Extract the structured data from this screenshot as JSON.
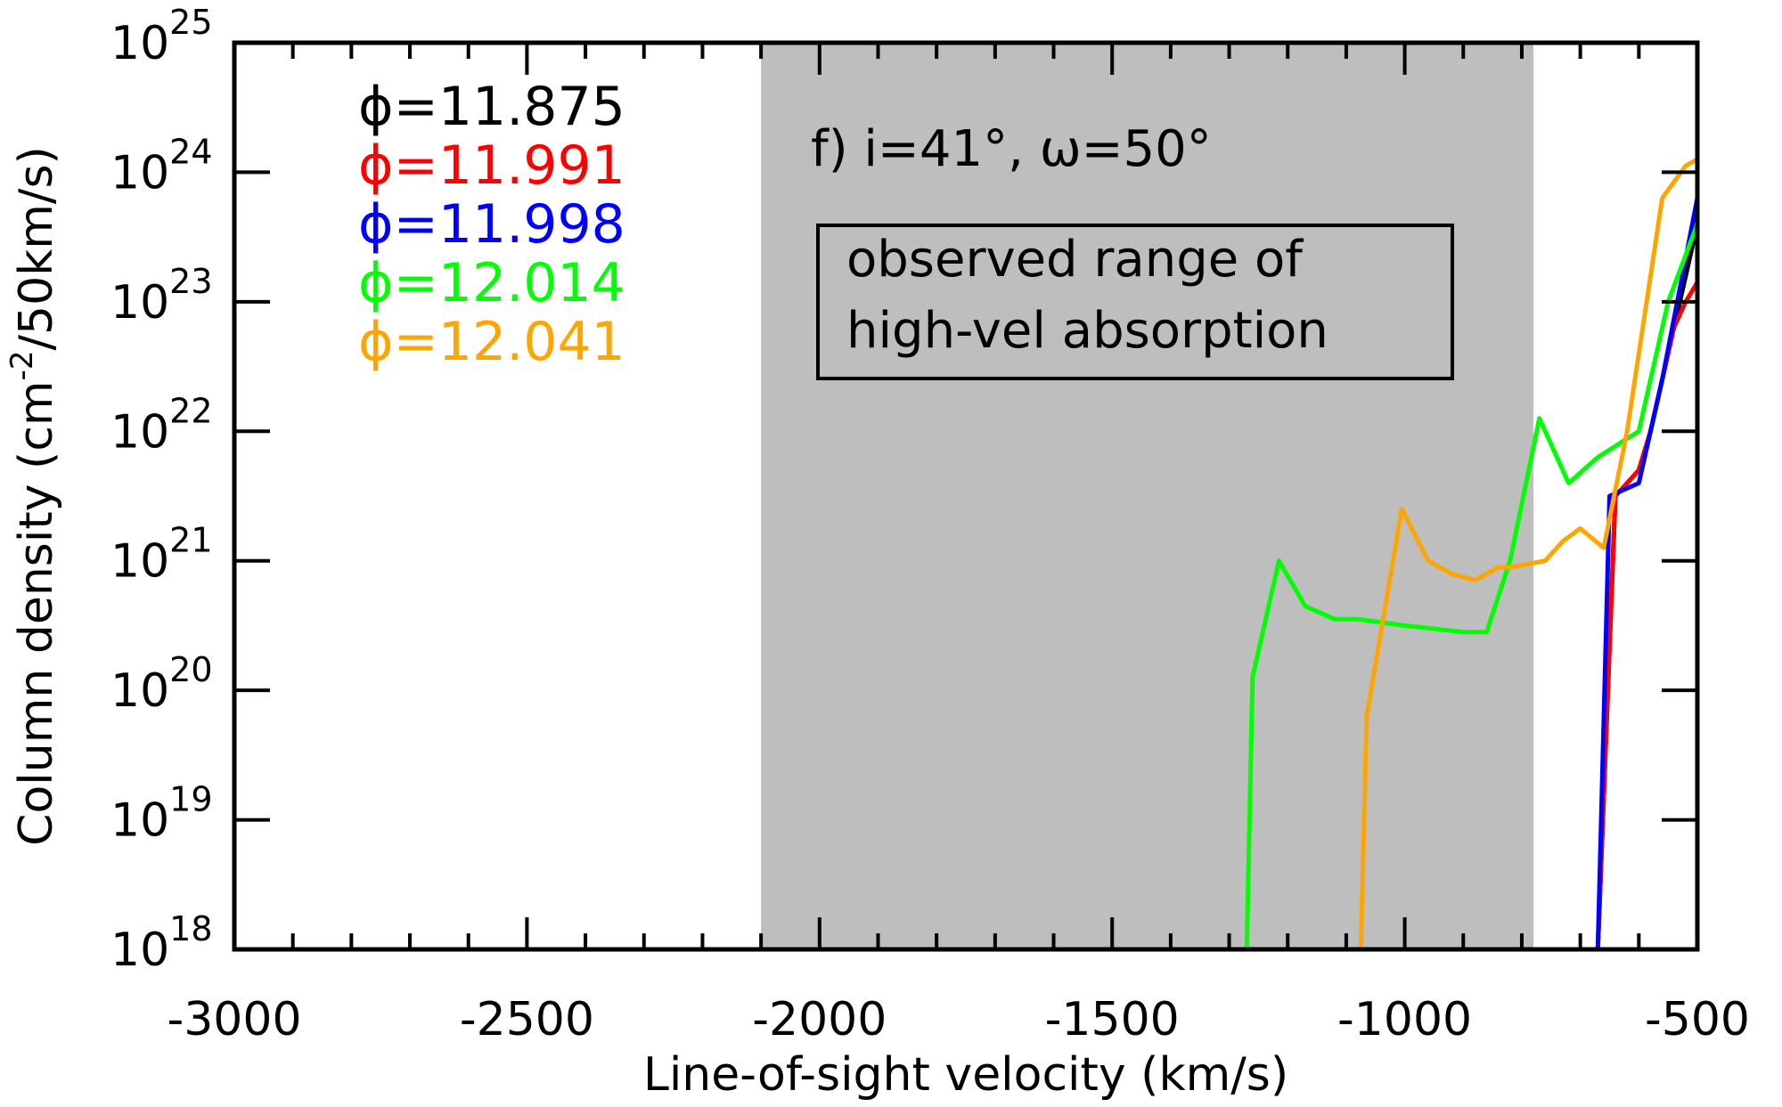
{
  "chart_data": {
    "type": "line",
    "xlabel": "Line-of-sight velocity (km/s)",
    "ylabel": "Column density (cm",
    "ylabel_sup": "-2",
    "ylabel_end": "/50km/s)",
    "xlim": [
      -3000,
      -500
    ],
    "ylim": [
      1e+18,
      1e+25
    ],
    "yscale": "log",
    "x_ticks": [
      -3000,
      -2500,
      -2000,
      -1500,
      -1000,
      -500
    ],
    "x_tick_labels": [
      "-3000",
      "-2500",
      "-2000",
      "-1500",
      "-1000",
      "-500"
    ],
    "y_ticks": [
      {
        "base": "10",
        "exp": "18",
        "value": 18
      },
      {
        "base": "10",
        "exp": "19",
        "value": 19
      },
      {
        "base": "10",
        "exp": "20",
        "value": 20
      },
      {
        "base": "10",
        "exp": "21",
        "value": 21
      },
      {
        "base": "10",
        "exp": "22",
        "value": 22
      },
      {
        "base": "10",
        "exp": "23",
        "value": 23
      },
      {
        "base": "10",
        "exp": "24",
        "value": 24
      },
      {
        "base": "10",
        "exp": "25",
        "value": 25
      }
    ],
    "shaded_region": {
      "x": [
        -2100,
        -780
      ],
      "color": "#bebebe"
    },
    "annotation": "f) i=41°, ω=50°",
    "box_lines": [
      "observed range of",
      "high-vel absorption"
    ],
    "legend_position": "top-left",
    "series": [
      {
        "name": "ϕ=11.875",
        "color": "#000000",
        "x": [
          -670,
          -640,
          -620,
          -600,
          -580,
          -560,
          -540,
          -520,
          -500
        ],
        "y": [
          18.0,
          21.5,
          21.6,
          21.7,
          22.0,
          22.4,
          22.8,
          23.2,
          23.6
        ]
      },
      {
        "name": "ϕ=11.991",
        "color": "#ff0000",
        "x": [
          -670,
          -640,
          -620,
          -600,
          -580,
          -560,
          -540,
          -520,
          -500
        ],
        "y": [
          18.0,
          21.5,
          21.6,
          21.7,
          22.0,
          22.4,
          22.8,
          23.0,
          23.15
        ]
      },
      {
        "name": "ϕ=11.998",
        "color": "#0000ff",
        "x": [
          -670,
          -650,
          -600,
          -560,
          -500
        ],
        "y": [
          18.0,
          21.5,
          21.6,
          22.4,
          23.8
        ]
      },
      {
        "name": "ϕ=12.014",
        "color": "#00ff00",
        "x": [
          -1270,
          -1260,
          -1215,
          -1170,
          -1120,
          -1080,
          -1000,
          -900,
          -860,
          -820,
          -770,
          -720,
          -670,
          -600,
          -550,
          -500
        ],
        "y": [
          18.0,
          20.1,
          21.0,
          20.65,
          20.55,
          20.55,
          20.5,
          20.45,
          20.45,
          21.0,
          22.1,
          21.6,
          21.8,
          22.0,
          23.0,
          23.6
        ]
      },
      {
        "name": "ϕ=12.041",
        "color": "#ffa500",
        "x": [
          -1075,
          -1065,
          -1005,
          -960,
          -920,
          -880,
          -840,
          -820,
          -760,
          -730,
          -700,
          -660,
          -620,
          -560,
          -520,
          -500
        ],
        "y": [
          18.0,
          19.8,
          21.4,
          21.0,
          20.9,
          20.85,
          20.95,
          20.95,
          21.0,
          21.15,
          21.25,
          21.1,
          22.0,
          23.8,
          24.05,
          24.1
        ]
      }
    ]
  }
}
